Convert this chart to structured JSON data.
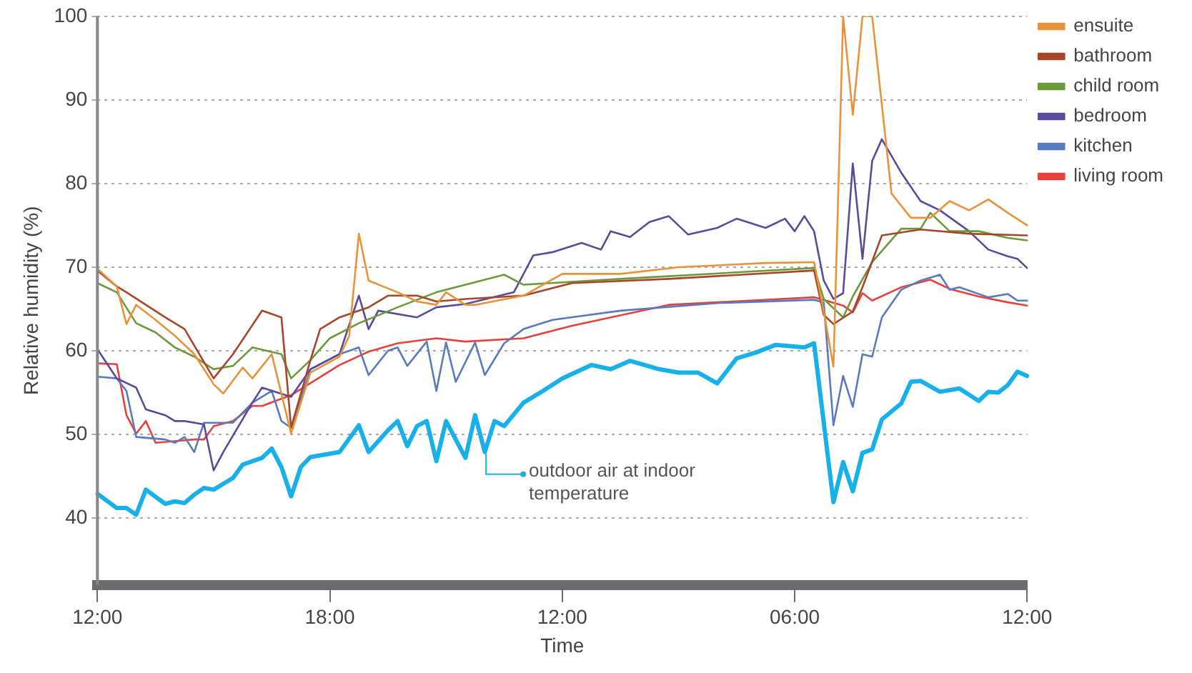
{
  "chart_data": {
    "type": "line",
    "xlabel": "Time",
    "ylabel": "Relative humidity (%)",
    "categories": [
      "12:00",
      null,
      null,
      null,
      null,
      null,
      null,
      null,
      null,
      null,
      null,
      null,
      null,
      null,
      null,
      null,
      null,
      null,
      null,
      null,
      null,
      null,
      null,
      null,
      "18:00",
      null,
      null,
      null,
      null,
      null,
      null,
      null,
      null,
      null,
      null,
      null,
      null,
      null,
      null,
      null,
      null,
      null,
      null,
      null,
      null,
      null,
      null,
      null,
      "12:00",
      null,
      null,
      null,
      null,
      null,
      null,
      null,
      null,
      null,
      null,
      null,
      null,
      null,
      null,
      null,
      null,
      null,
      null,
      null,
      null,
      null,
      null,
      null,
      "06:00",
      null,
      null,
      null,
      null,
      null,
      null,
      null,
      null,
      null,
      null,
      null,
      null,
      null,
      null,
      null,
      null,
      null,
      null,
      null,
      null,
      null,
      null,
      null,
      "12:00"
    ],
    "ylim": [
      32,
      100
    ],
    "yticks": [
      40,
      50,
      60,
      70,
      80,
      90,
      100
    ],
    "grid": "y",
    "legend": "top right",
    "marker": "none",
    "line_style": "solid",
    "annotations": [
      "outdoor air at indoor temperature"
    ],
    "series": [
      {
        "name": "ensuite",
        "color": "#e8923a",
        "values": [
          69.8,
          null,
          67.7,
          63.2,
          65.5,
          null,
          63.7,
          null,
          61.8,
          null,
          59.6,
          null,
          56.0,
          54.9,
          null,
          58.0,
          56.7,
          null,
          59.6,
          null,
          50.1,
          null,
          57.4,
          null,
          null,
          59.3,
          61.8,
          74.0,
          68.4,
          null,
          null,
          67.0,
          null,
          65.9,
          null,
          65.5,
          67.0,
          null,
          65.5,
          65.5,
          null,
          null,
          null,
          null,
          66.6,
          null,
          null,
          null,
          69.2,
          null,
          null,
          null,
          null,
          null,
          69.2,
          null,
          null,
          null,
          null,
          null,
          70.0,
          null,
          null,
          null,
          null,
          null,
          null,
          null,
          null,
          70.5,
          null,
          null,
          null,
          null,
          70.6,
          64.7,
          58.1,
          100,
          88.2,
          100,
          100,
          null,
          78.8,
          null,
          75.9,
          null,
          75.9,
          null,
          77.9,
          null,
          76.8,
          null,
          78.1,
          null,
          76.5,
          null,
          75.0
        ]
      },
      {
        "name": "bathroom",
        "color": "#a8462a",
        "values": [
          69.6,
          null,
          67.7,
          67.0,
          null,
          65.5,
          null,
          64.0,
          null,
          62.6,
          null,
          null,
          56.7,
          null,
          59.6,
          null,
          null,
          64.8,
          null,
          64.0,
          50.8,
          null,
          58.9,
          62.6,
          null,
          64.0,
          null,
          null,
          65.2,
          null,
          66.6,
          null,
          null,
          66.6,
          null,
          65.9,
          null,
          null,
          66.2,
          null,
          null,
          null,
          null,
          null,
          66.6,
          null,
          null,
          null,
          null,
          68.1,
          null,
          null,
          null,
          null,
          null,
          null,
          null,
          null,
          null,
          68.6,
          null,
          null,
          null,
          null,
          null,
          null,
          null,
          null,
          null,
          null,
          null,
          null,
          null,
          null,
          69.6,
          64.3,
          63.2,
          null,
          64.7,
          67.6,
          null,
          73.8,
          null,
          null,
          null,
          74.5,
          null,
          null,
          null,
          null,
          74.0,
          null,
          null,
          null,
          null,
          null,
          73.8
        ]
      },
      {
        "name": "child room",
        "color": "#6a9a3a",
        "values": [
          68.1,
          null,
          67.0,
          null,
          63.3,
          null,
          62.2,
          null,
          60.4,
          null,
          59.3,
          null,
          57.8,
          null,
          58.2,
          null,
          60.4,
          null,
          null,
          59.6,
          56.7,
          null,
          58.9,
          null,
          61.5,
          null,
          null,
          63.3,
          null,
          null,
          null,
          65.2,
          null,
          null,
          null,
          67.0,
          null,
          null,
          67.9,
          null,
          null,
          null,
          69.1,
          null,
          67.9,
          null,
          null,
          null,
          null,
          null,
          null,
          null,
          null,
          null,
          68.6,
          null,
          null,
          null,
          null,
          null,
          null,
          null,
          null,
          null,
          null,
          null,
          null,
          null,
          null,
          null,
          null,
          null,
          null,
          null,
          69.9,
          66.2,
          null,
          64.0,
          66.5,
          null,
          70.6,
          null,
          null,
          74.6,
          null,
          74.6,
          76.5,
          null,
          74.3,
          null,
          null,
          74.3,
          null,
          null,
          73.5,
          null,
          73.2
        ]
      },
      {
        "name": "bedroom",
        "color": "#5a4a9a",
        "values": [
          60.2,
          null,
          56.7,
          null,
          55.6,
          53.0,
          null,
          52.3,
          51.6,
          51.6,
          null,
          51.2,
          45.7,
          47.9,
          null,
          null,
          53.8,
          55.6,
          null,
          null,
          54.5,
          null,
          57.8,
          null,
          null,
          59.6,
          null,
          66.6,
          62.6,
          64.8,
          null,
          null,
          null,
          64.0,
          null,
          65.2,
          null,
          null,
          65.6,
          null,
          null,
          null,
          null,
          67.0,
          null,
          71.4,
          null,
          71.8,
          null,
          null,
          72.9,
          null,
          72.1,
          74.3,
          null,
          73.6,
          null,
          75.4,
          null,
          76.1,
          null,
          73.9,
          null,
          null,
          74.7,
          null,
          75.8,
          null,
          null,
          74.7,
          null,
          75.8,
          74.3,
          76.1,
          74.3,
          68.4,
          66.2,
          66.9,
          82.4,
          71.0,
          82.7,
          85.3,
          null,
          81.3,
          null,
          77.9,
          null,
          76.8,
          null,
          null,
          74.3,
          null,
          72.1,
          null,
          71.3,
          71.0,
          69.9
        ]
      },
      {
        "name": "kitchen",
        "color": "#5a7ac0",
        "values": [
          56.9,
          null,
          56.7,
          55.2,
          49.7,
          null,
          null,
          49.4,
          49.0,
          49.7,
          47.9,
          51.4,
          null,
          null,
          51.4,
          null,
          53.8,
          null,
          55.2,
          51.6,
          50.8,
          null,
          57.8,
          null,
          null,
          59.6,
          null,
          60.4,
          57.1,
          null,
          60.0,
          60.4,
          58.2,
          null,
          61.1,
          55.2,
          61.0,
          56.3,
          null,
          61.0,
          57.1,
          null,
          60.9,
          null,
          62.6,
          null,
          null,
          63.7,
          null,
          null,
          null,
          null,
          null,
          null,
          64.8,
          null,
          null,
          null,
          null,
          null,
          null,
          null,
          null,
          null,
          65.7,
          null,
          null,
          null,
          null,
          null,
          null,
          null,
          null,
          null,
          66.1,
          65.8,
          51.1,
          57.0,
          53.3,
          59.6,
          59.3,
          64.0,
          null,
          67.3,
          null,
          68.4,
          null,
          69.1,
          67.3,
          67.6,
          null,
          null,
          66.4,
          null,
          66.8,
          66.0,
          66.0
        ]
      },
      {
        "name": "living room",
        "color": "#e8403a",
        "values": [
          58.5,
          null,
          58.4,
          52.3,
          50.1,
          51.6,
          49.0,
          null,
          null,
          null,
          49.4,
          49.4,
          51.0,
          null,
          51.6,
          null,
          53.4,
          53.4,
          null,
          null,
          54.7,
          null,
          null,
          null,
          null,
          58.3,
          null,
          null,
          59.9,
          null,
          null,
          60.9,
          null,
          null,
          null,
          61.5,
          null,
          null,
          61.1,
          null,
          null,
          null,
          null,
          null,
          61.5,
          null,
          null,
          null,
          null,
          63.0,
          null,
          null,
          null,
          null,
          null,
          null,
          null,
          null,
          null,
          65.5,
          null,
          null,
          null,
          null,
          null,
          null,
          null,
          null,
          null,
          null,
          null,
          null,
          null,
          null,
          66.4,
          null,
          null,
          65.4,
          64.6,
          66.9,
          66.0,
          null,
          null,
          67.6,
          null,
          null,
          68.5,
          null,
          67.4,
          null,
          null,
          66.5,
          null,
          null,
          65.8,
          null,
          65.4
        ]
      },
      {
        "color": "#17b0e8",
        "values": [
          42.9,
          null,
          41.2,
          41.2,
          40.4,
          43.4,
          null,
          41.7,
          42.0,
          41.8,
          42.8,
          43.6,
          43.4,
          null,
          44.8,
          46.4,
          null,
          47.2,
          48.3,
          46.1,
          42.6,
          46.1,
          47.3,
          null,
          null,
          47.9,
          null,
          51.1,
          47.9,
          null,
          50.5,
          51.6,
          48.6,
          51.0,
          51.6,
          46.8,
          51.6,
          null,
          47.2,
          52.3,
          47.9,
          51.6,
          51.0,
          null,
          53.8,
          null,
          55.2,
          null,
          56.7,
          null,
          null,
          58.3,
          null,
          57.8,
          null,
          58.8,
          null,
          null,
          57.8,
          null,
          57.4,
          null,
          57.4,
          null,
          56.1,
          null,
          59.1,
          null,
          59.8,
          null,
          60.7,
          null,
          null,
          60.4,
          60.9,
          null,
          41.9,
          46.7,
          43.2,
          47.8,
          48.2,
          51.8,
          null,
          53.7,
          56.3,
          56.4,
          null,
          55.1,
          null,
          55.5,
          null,
          54.0,
          55.1,
          55.0,
          55.9,
          57.5,
          57.0
        ]
      }
    ]
  }
}
